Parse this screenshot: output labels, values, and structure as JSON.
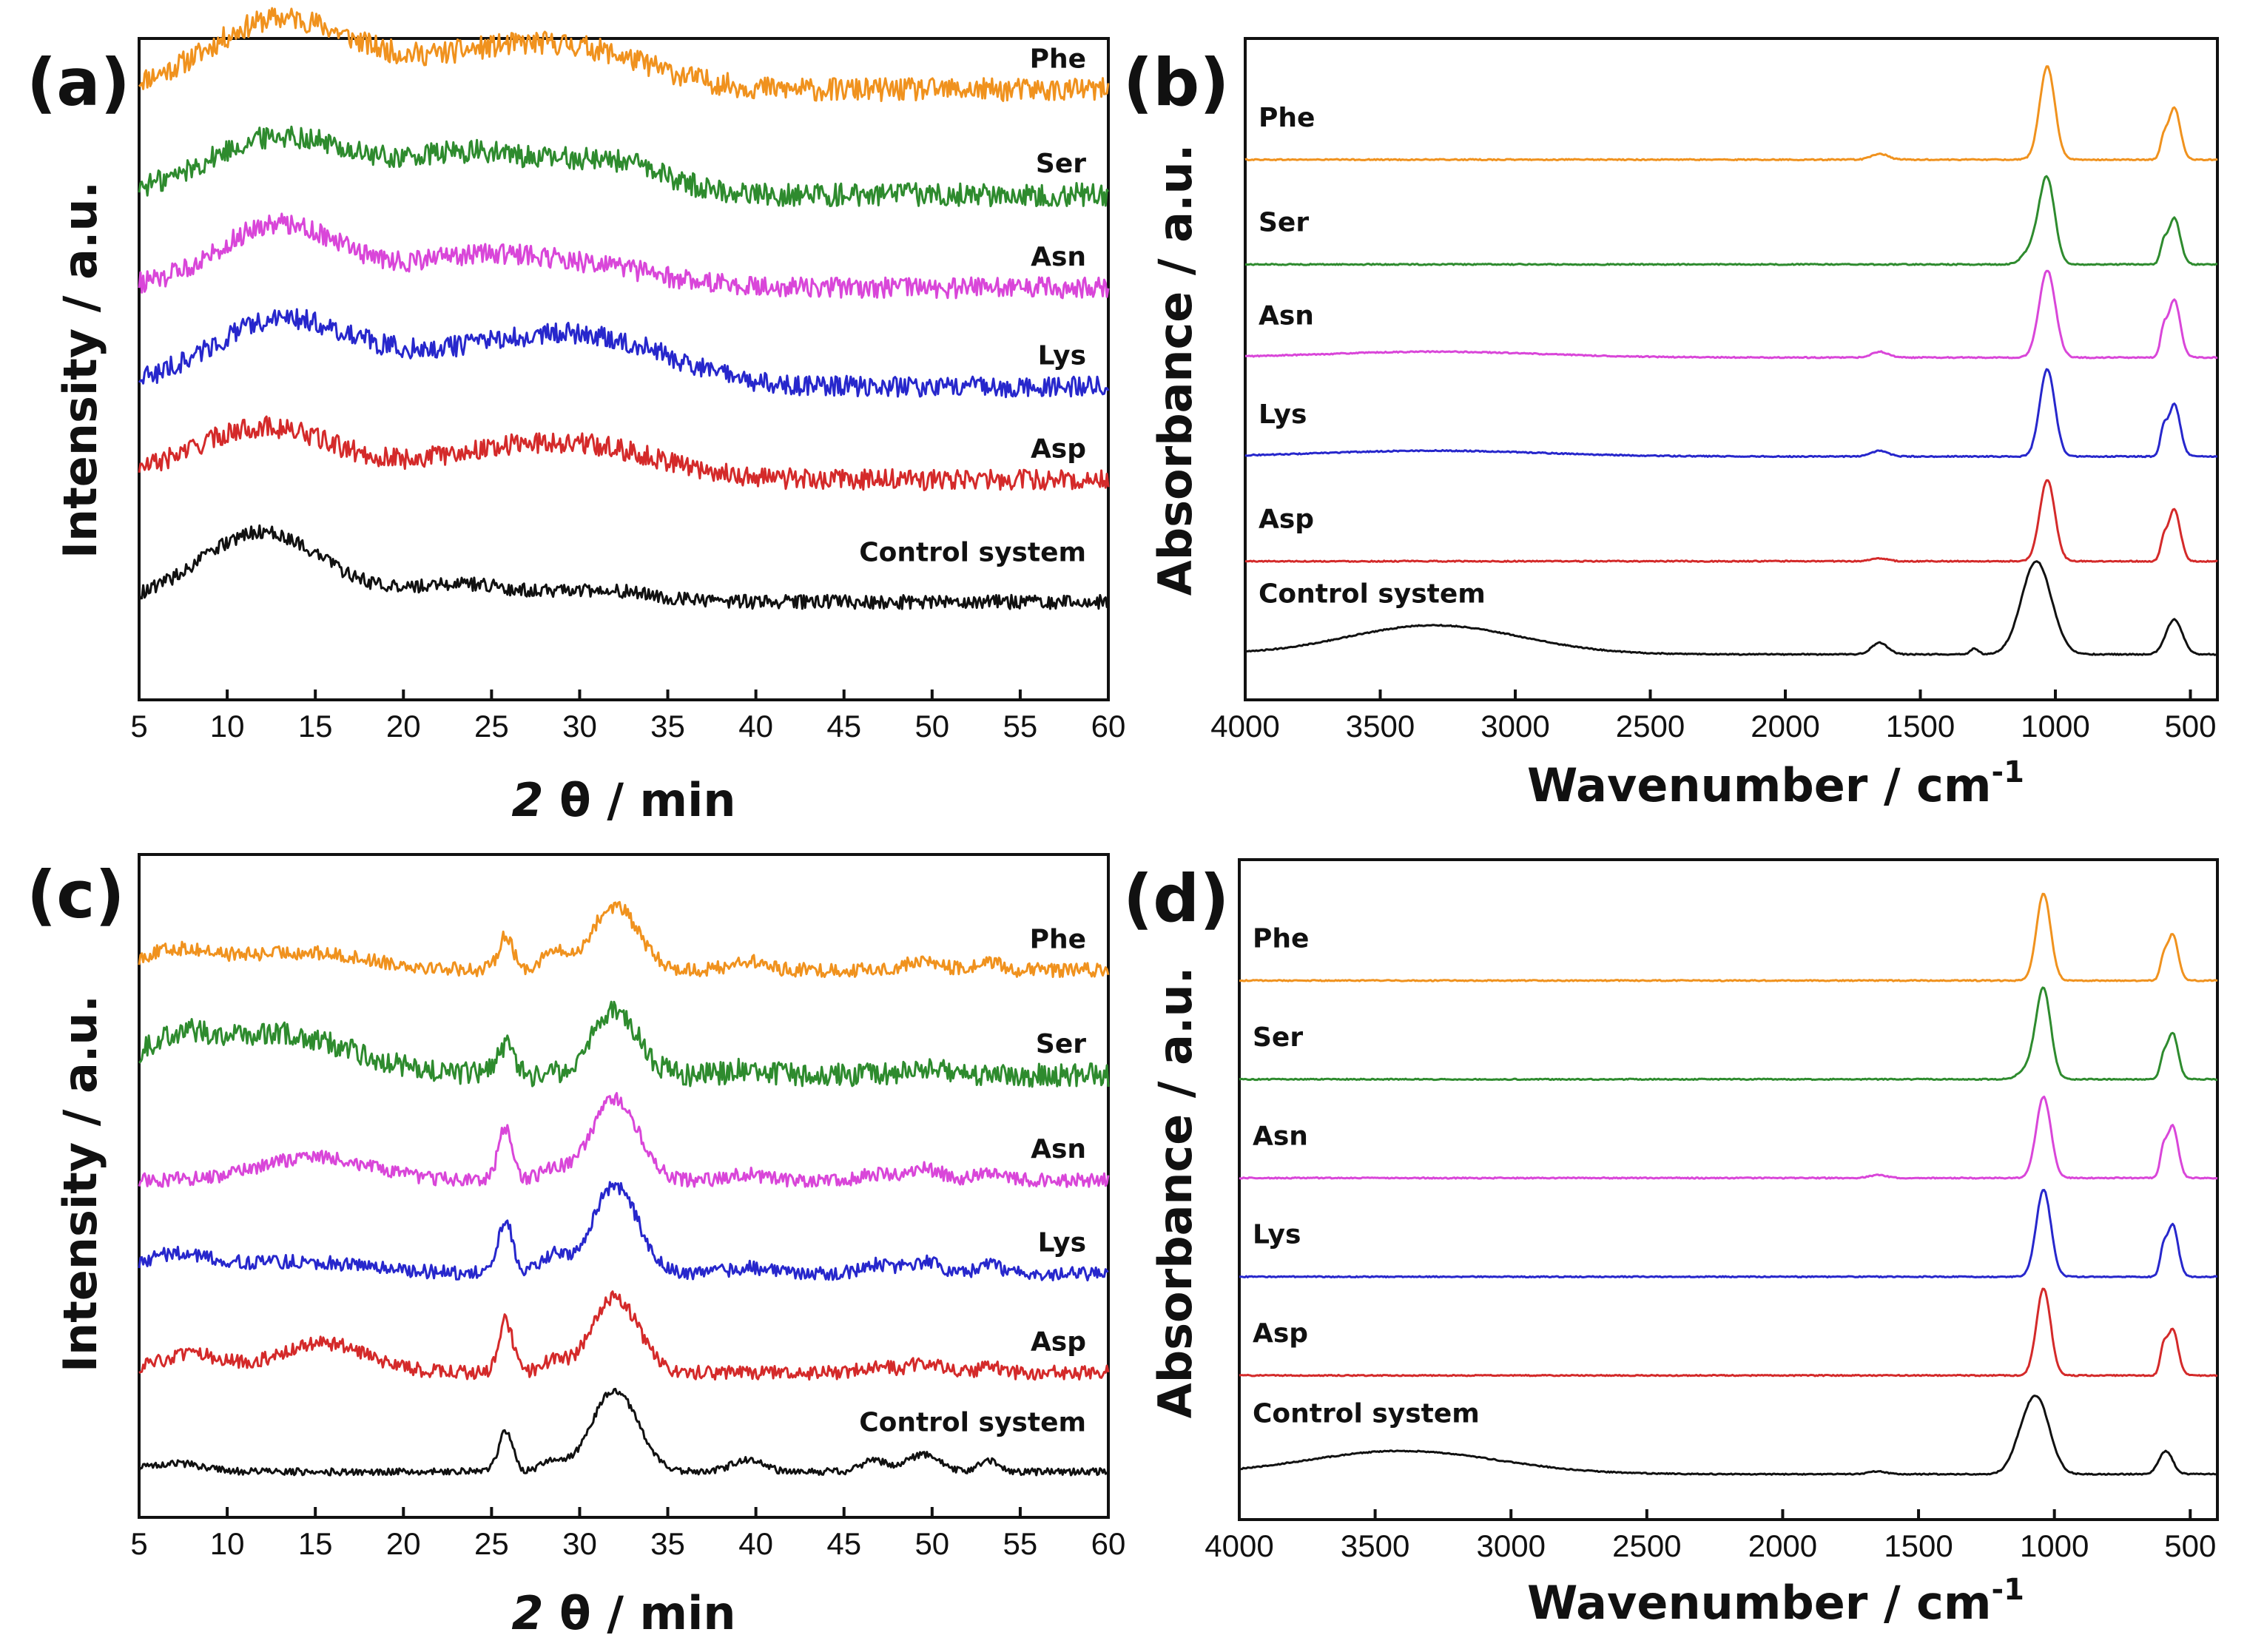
{
  "chart_data": [
    {
      "panel": "(a)",
      "type": "line",
      "xlabel_italic": "2",
      "xlabel_rest": " θ / min",
      "ylabel": "Intensity / a.u.",
      "xlim": [
        5,
        60
      ],
      "xticks": [
        5,
        10,
        15,
        20,
        25,
        30,
        35,
        40,
        45,
        50,
        55,
        60
      ],
      "series": [
        {
          "name": "Phe",
          "color": "#f0921e",
          "baseline": 0.98,
          "noise": 0.02,
          "peaks": [
            [
              13,
              0.12,
              4
            ],
            [
              25,
              0.06,
              5
            ],
            [
              31,
              0.04,
              4
            ]
          ]
        },
        {
          "name": "Ser",
          "color": "#2e8b2e",
          "baseline": 0.8,
          "noise": 0.02,
          "peaks": [
            [
              13,
              0.1,
              4
            ],
            [
              24,
              0.07,
              4
            ],
            [
              32,
              0.05,
              3
            ]
          ]
        },
        {
          "name": "Asn",
          "color": "#d946d9",
          "baseline": 0.64,
          "noise": 0.018,
          "peaks": [
            [
              13,
              0.11,
              3.5
            ],
            [
              24,
              0.05,
              4
            ],
            [
              31,
              0.03,
              4
            ]
          ]
        },
        {
          "name": "Lys",
          "color": "#2727cc",
          "baseline": 0.47,
          "noise": 0.018,
          "peaks": [
            [
              13,
              0.11,
              4
            ],
            [
              26,
              0.07,
              6
            ],
            [
              32,
              0.04,
              4
            ]
          ]
        },
        {
          "name": "Asp",
          "color": "#d42a2a",
          "baseline": 0.31,
          "noise": 0.018,
          "peaks": [
            [
              12,
              0.09,
              4
            ],
            [
              26,
              0.05,
              5
            ],
            [
              32,
              0.03,
              4
            ]
          ]
        },
        {
          "name": "Control system",
          "color": "#111111",
          "baseline": 0.1,
          "noise": 0.012,
          "peaks": [
            [
              12,
              0.12,
              3.5
            ],
            [
              23,
              0.03,
              3
            ],
            [
              31,
              0.02,
              3
            ]
          ]
        }
      ]
    },
    {
      "panel": "(b)",
      "type": "line",
      "xlabel": "Wavenumber / cm",
      "xlabel_sup": "-1",
      "ylabel": "Absorbance / a.u.",
      "xlim": [
        4000,
        400
      ],
      "xticks": [
        4000,
        3500,
        3000,
        2500,
        2000,
        1500,
        1000,
        500
      ],
      "series": [
        {
          "name": "Phe",
          "color": "#f0921e",
          "baseline": 0.86,
          "noise": 0.001,
          "peaks": [
            [
              1030,
              0.16,
              28
            ],
            [
              560,
              0.09,
              22
            ],
            [
              600,
              0.03,
              12
            ],
            [
              1650,
              0.01,
              30
            ]
          ]
        },
        {
          "name": "Ser",
          "color": "#2e8b2e",
          "baseline": 0.68,
          "noise": 0.001,
          "peaks": [
            [
              1030,
              0.14,
              28
            ],
            [
              560,
              0.08,
              22
            ],
            [
              600,
              0.03,
              12
            ],
            [
              1080,
              0.03,
              35
            ]
          ]
        },
        {
          "name": "Asn",
          "color": "#d946d9",
          "baseline": 0.52,
          "noise": 0.001,
          "peaks": [
            [
              1030,
              0.15,
              30
            ],
            [
              560,
              0.1,
              22
            ],
            [
              600,
              0.04,
              12
            ],
            [
              1650,
              0.01,
              30
            ],
            [
              3300,
              0.01,
              400
            ]
          ]
        },
        {
          "name": "Lys",
          "color": "#2727cc",
          "baseline": 0.35,
          "noise": 0.001,
          "peaks": [
            [
              1030,
              0.15,
              28
            ],
            [
              560,
              0.09,
              22
            ],
            [
              600,
              0.04,
              12
            ],
            [
              1650,
              0.01,
              30
            ],
            [
              3300,
              0.01,
              400
            ]
          ]
        },
        {
          "name": "Asp",
          "color": "#d42a2a",
          "baseline": 0.17,
          "noise": 0.001,
          "peaks": [
            [
              1030,
              0.14,
              28
            ],
            [
              560,
              0.09,
              22
            ],
            [
              600,
              0.03,
              12
            ],
            [
              1650,
              0.005,
              30
            ]
          ]
        },
        {
          "name": "Control system",
          "color": "#111111",
          "baseline": 0.01,
          "noise": 0.001,
          "peaks": [
            [
              1070,
              0.16,
              55
            ],
            [
              560,
              0.06,
              30
            ],
            [
              3300,
              0.05,
              320
            ],
            [
              1650,
              0.02,
              30
            ],
            [
              1300,
              0.01,
              15
            ]
          ]
        }
      ]
    },
    {
      "panel": "(c)",
      "type": "line",
      "xlabel_italic": "2",
      "xlabel_rest": " θ / min",
      "ylabel": "Intensity / a.u.",
      "xlim": [
        5,
        60
      ],
      "xticks": [
        5,
        10,
        15,
        20,
        25,
        30,
        35,
        40,
        45,
        50,
        55,
        60
      ],
      "series": [
        {
          "name": "Phe",
          "color": "#f0921e",
          "baseline": 0.87,
          "noise": 0.012,
          "peaks": [
            [
              7,
              0.03,
              2
            ],
            [
              14,
              0.03,
              4
            ],
            [
              25.8,
              0.06,
              0.4
            ],
            [
              28.5,
              0.03,
              0.7
            ],
            [
              32,
              0.11,
              1.3
            ],
            [
              39.5,
              0.015,
              1
            ],
            [
              49.5,
              0.015,
              1
            ],
            [
              53.2,
              0.015,
              0.6
            ]
          ]
        },
        {
          "name": "Ser",
          "color": "#2e8b2e",
          "baseline": 0.69,
          "noise": 0.02,
          "peaks": [
            [
              7,
              0.05,
              2
            ],
            [
              13,
              0.07,
              4
            ],
            [
              25.8,
              0.05,
              0.5
            ],
            [
              32,
              0.11,
              1.3
            ],
            [
              39.5,
              0.01,
              1
            ],
            [
              49.5,
              0.015,
              1
            ]
          ]
        },
        {
          "name": "Asn",
          "color": "#d946d9",
          "baseline": 0.51,
          "noise": 0.012,
          "peaks": [
            [
              15,
              0.04,
              3
            ],
            [
              25.8,
              0.09,
              0.4
            ],
            [
              28.5,
              0.02,
              0.7
            ],
            [
              32,
              0.14,
              1.3
            ],
            [
              39.5,
              0.01,
              1
            ],
            [
              46.7,
              0.01,
              0.8
            ],
            [
              49.5,
              0.02,
              1
            ],
            [
              53.2,
              0.015,
              0.6
            ]
          ]
        },
        {
          "name": "Lys",
          "color": "#2727cc",
          "baseline": 0.35,
          "noise": 0.012,
          "peaks": [
            [
              7,
              0.03,
              2
            ],
            [
              14,
              0.02,
              4
            ],
            [
              25.8,
              0.09,
              0.4
            ],
            [
              28.5,
              0.03,
              0.7
            ],
            [
              32,
              0.15,
              1.3
            ],
            [
              39.5,
              0.01,
              1
            ],
            [
              46.7,
              0.015,
              0.8
            ],
            [
              49.5,
              0.02,
              1
            ],
            [
              53.2,
              0.02,
              0.6
            ]
          ]
        },
        {
          "name": "Asp",
          "color": "#d42a2a",
          "baseline": 0.18,
          "noise": 0.012,
          "peaks": [
            [
              8,
              0.03,
              2
            ],
            [
              15.5,
              0.05,
              2.5
            ],
            [
              25.8,
              0.09,
              0.4
            ],
            [
              28.5,
              0.02,
              0.7
            ],
            [
              32,
              0.13,
              1.3
            ],
            [
              46.7,
              0.01,
              0.8
            ],
            [
              49.5,
              0.015,
              1
            ],
            [
              53.2,
              0.01,
              0.6
            ]
          ]
        },
        {
          "name": "Control system",
          "color": "#111111",
          "baseline": 0.01,
          "noise": 0.006,
          "peaks": [
            [
              7,
              0.015,
              1.5
            ],
            [
              25.8,
              0.07,
              0.4
            ],
            [
              28.5,
              0.02,
              0.6
            ],
            [
              32,
              0.14,
              1.3
            ],
            [
              39.5,
              0.02,
              0.9
            ],
            [
              46.7,
              0.02,
              0.7
            ],
            [
              49.5,
              0.03,
              0.9
            ],
            [
              53.2,
              0.02,
              0.6
            ]
          ]
        }
      ]
    },
    {
      "panel": "(d)",
      "type": "line",
      "xlabel": "Wavenumber / cm",
      "xlabel_sup": "-1",
      "ylabel": "Absorbance / a.u.",
      "xlim": [
        4000,
        400
      ],
      "xticks": [
        4000,
        3500,
        3000,
        2500,
        2000,
        1500,
        1000,
        500
      ],
      "series": [
        {
          "name": "Phe",
          "color": "#f0921e",
          "baseline": 0.86,
          "noise": 0.001,
          "peaks": [
            [
              1040,
              0.15,
              26
            ],
            [
              565,
              0.08,
              20
            ],
            [
              600,
              0.03,
              12
            ]
          ]
        },
        {
          "name": "Ser",
          "color": "#2e8b2e",
          "baseline": 0.69,
          "noise": 0.001,
          "peaks": [
            [
              1040,
              0.15,
              27
            ],
            [
              565,
              0.08,
              20
            ],
            [
              600,
              0.03,
              12
            ],
            [
              1090,
              0.02,
              35
            ]
          ]
        },
        {
          "name": "Asn",
          "color": "#d946d9",
          "baseline": 0.52,
          "noise": 0.001,
          "peaks": [
            [
              1040,
              0.14,
              27
            ],
            [
              565,
              0.09,
              20
            ],
            [
              600,
              0.04,
              12
            ],
            [
              1650,
              0.005,
              30
            ]
          ]
        },
        {
          "name": "Lys",
          "color": "#2727cc",
          "baseline": 0.35,
          "noise": 0.001,
          "peaks": [
            [
              1040,
              0.15,
              27
            ],
            [
              565,
              0.09,
              20
            ],
            [
              600,
              0.04,
              12
            ]
          ]
        },
        {
          "name": "Asp",
          "color": "#d42a2a",
          "baseline": 0.18,
          "noise": 0.001,
          "peaks": [
            [
              1040,
              0.15,
              26
            ],
            [
              565,
              0.08,
              20
            ],
            [
              600,
              0.04,
              12
            ]
          ]
        },
        {
          "name": "Control system",
          "color": "#111111",
          "baseline": 0.01,
          "noise": 0.001,
          "peaks": [
            [
              1060,
              0.12,
              45
            ],
            [
              1120,
              0.04,
              40
            ],
            [
              590,
              0.04,
              25
            ],
            [
              3400,
              0.04,
              350
            ],
            [
              1650,
              0.005,
              30
            ]
          ]
        }
      ]
    }
  ]
}
